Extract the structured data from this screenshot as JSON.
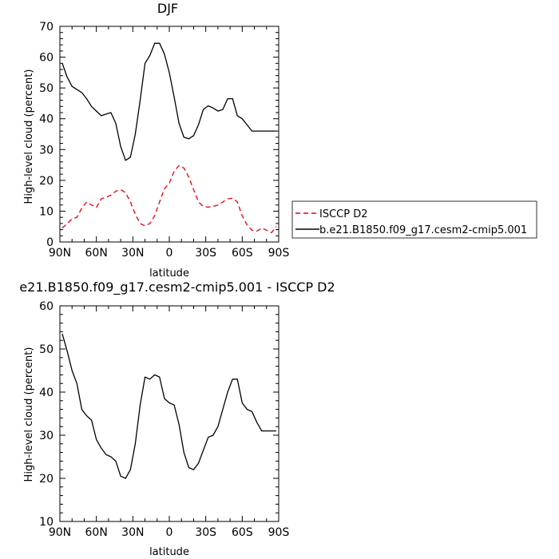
{
  "chart_data": [
    {
      "type": "line",
      "title": "DJF",
      "xlabel": "latitude",
      "ylabel": "High-level cloud (percent)",
      "xlim": [
        90,
        -90
      ],
      "ylim": [
        0,
        70
      ],
      "xticks": [
        "90N",
        "60N",
        "30N",
        "0",
        "30S",
        "60S",
        "90S"
      ],
      "xtick_values": [
        90,
        60,
        30,
        0,
        -30,
        -60,
        -90
      ],
      "yticks": [
        "0",
        "10",
        "20",
        "30",
        "40",
        "50",
        "60",
        "70"
      ],
      "ytick_values": [
        0,
        10,
        20,
        30,
        40,
        50,
        60,
        70
      ],
      "legend_position": "right",
      "series": [
        {
          "name": "ISCCP D2",
          "color": "#e8000b",
          "dash": "dashed",
          "x": [
            88,
            84,
            80,
            76,
            72,
            68,
            64,
            60,
            56,
            52,
            48,
            44,
            40,
            36,
            32,
            28,
            24,
            20,
            16,
            12,
            8,
            4,
            0,
            -4,
            -8,
            -12,
            -16,
            -20,
            -24,
            -28,
            -32,
            -36,
            -40,
            -44,
            -48,
            -52,
            -56,
            -60,
            -64,
            -68,
            -72,
            -76,
            -80,
            -84,
            -88
          ],
          "y": [
            4.5,
            6,
            7.5,
            8,
            11,
            13,
            12,
            11.2,
            14,
            14.5,
            15.2,
            16.5,
            17,
            16,
            13,
            9,
            6,
            5.2,
            6,
            8.5,
            13,
            17.3,
            19,
            23,
            24.8,
            24,
            21,
            17,
            13,
            11.5,
            11.3,
            11.5,
            12,
            13,
            14,
            14.2,
            13,
            8.5,
            5.5,
            3.8,
            3.5,
            4.5,
            3.8,
            3,
            5
          ]
        },
        {
          "name": "b.e21.B1850.f09_g17.cesm2-cmip5.001",
          "color": "#000000",
          "dash": "solid",
          "x": [
            88,
            84,
            80,
            76,
            72,
            68,
            64,
            60,
            56,
            52,
            48,
            44,
            40,
            36,
            32,
            28,
            24,
            20,
            16,
            12,
            8,
            4,
            0,
            -4,
            -8,
            -12,
            -16,
            -20,
            -24,
            -28,
            -32,
            -36,
            -40,
            -44,
            -48,
            -52,
            -56,
            -60,
            -64,
            -68,
            -72,
            -76,
            -80,
            -84,
            -88
          ],
          "y": [
            58,
            53.5,
            50.5,
            49.5,
            48.5,
            46.5,
            44,
            42.5,
            41,
            41.5,
            42,
            38.5,
            31,
            26.5,
            27.5,
            35,
            46,
            58,
            60.5,
            64.5,
            64.5,
            61,
            55,
            47,
            38.5,
            34,
            33.5,
            34.5,
            38,
            43,
            44.2,
            43.5,
            42.5,
            43,
            46.5,
            46.5,
            41,
            40,
            38,
            36,
            36,
            36,
            36,
            36,
            36
          ]
        }
      ]
    },
    {
      "type": "line",
      "title": "e21.B1850.f09_g17.cesm2-cmip5.001 - ISCCP D2",
      "xlabel": "latitude",
      "ylabel": "High-level cloud (percent)",
      "xlim": [
        90,
        -90
      ],
      "ylim": [
        10,
        60
      ],
      "xticks": [
        "90N",
        "60N",
        "30N",
        "0",
        "30S",
        "60S",
        "90S"
      ],
      "xtick_values": [
        90,
        60,
        30,
        0,
        -30,
        -60,
        -90
      ],
      "yticks": [
        "10",
        "20",
        "30",
        "40",
        "50",
        "60"
      ],
      "ytick_values": [
        10,
        20,
        30,
        40,
        50,
        60
      ],
      "series": [
        {
          "name": "",
          "color": "#000000",
          "dash": "solid",
          "x": [
            88,
            84,
            80,
            76,
            72,
            68,
            64,
            60,
            56,
            52,
            48,
            44,
            40,
            36,
            32,
            28,
            24,
            20,
            16,
            12,
            8,
            4,
            0,
            -4,
            -8,
            -12,
            -16,
            -20,
            -24,
            -28,
            -32,
            -36,
            -40,
            -44,
            -48,
            -52,
            -56,
            -60,
            -64,
            -68,
            -72,
            -76,
            -80,
            -84,
            -88
          ],
          "y": [
            53.5,
            49.5,
            45,
            42,
            36,
            34.5,
            33.5,
            29,
            27,
            25.5,
            25,
            24,
            20.5,
            20,
            22,
            28,
            37,
            43.5,
            43,
            44,
            43.5,
            38.5,
            37.5,
            37,
            32.5,
            26,
            22.5,
            22,
            23.5,
            26.5,
            29.5,
            30,
            32,
            36,
            40,
            43,
            43,
            37.5,
            36,
            35.5,
            33,
            31,
            31,
            31,
            31
          ]
        }
      ]
    }
  ]
}
